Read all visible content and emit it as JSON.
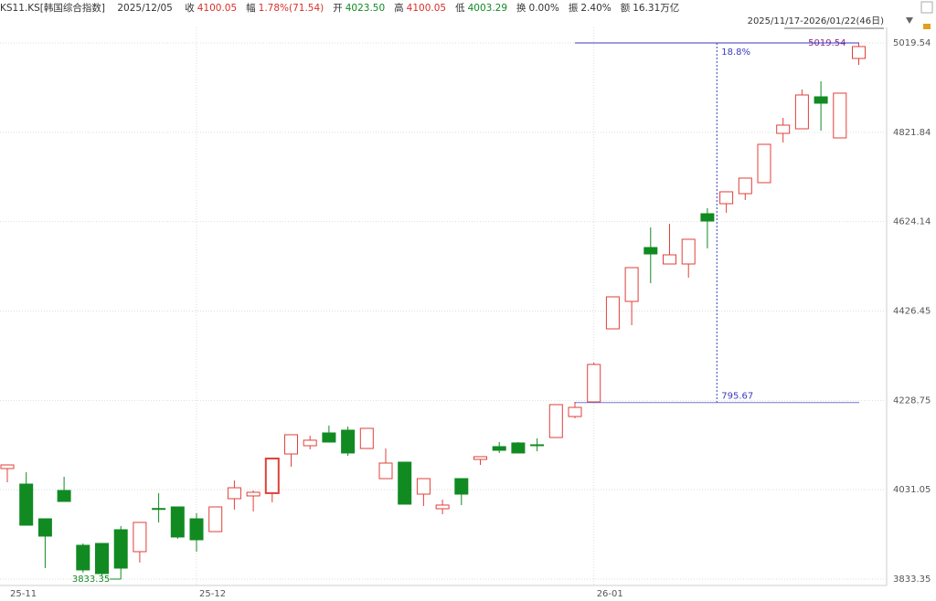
{
  "header": {
    "symbol": "KS11.KS[韩国综合指数]",
    "date": "2025/12/05",
    "fields": [
      {
        "label": "收",
        "value": "4100.05",
        "color": "#d8302a"
      },
      {
        "label": "幅",
        "value": "1.78%(71.54)",
        "color": "#d8302a"
      },
      {
        "label": "开",
        "value": "4023.50",
        "color": "#118a22"
      },
      {
        "label": "高",
        "value": "4100.05",
        "color": "#d8302a"
      },
      {
        "label": "低",
        "value": "4003.29",
        "color": "#118a22"
      },
      {
        "label": "换",
        "value": "0.00%",
        "color": "#333333"
      },
      {
        "label": "振",
        "value": "2.40%",
        "color": "#333333"
      },
      {
        "label": "额",
        "value": "16.31万亿",
        "color": "#333333"
      }
    ],
    "range": "2025/11/17-2026/01/22(46日)"
  },
  "chart_data": {
    "type": "candlestick",
    "categories": [
      "25-11",
      null,
      null,
      null,
      null,
      null,
      null,
      null,
      null,
      null,
      "25-12",
      null,
      null,
      null,
      null,
      null,
      null,
      null,
      null,
      null,
      null,
      null,
      null,
      null,
      null,
      null,
      null,
      null,
      null,
      null,
      null,
      "26-01",
      null,
      null,
      null,
      null,
      null,
      null,
      null,
      null,
      null,
      null,
      null,
      null,
      null,
      null
    ],
    "open": [
      4077.9,
      4043.5,
      3966.7,
      4029.4,
      3908.1,
      3912.2,
      3942.5,
      3894.0,
      3989.5,
      3993.0,
      3966.7,
      3938.4,
      4011.2,
      4017.3,
      4023.5,
      4110.2,
      4128.4,
      4156.7,
      4162.8,
      4122.3,
      4055.6,
      4092.0,
      4021.3,
      3989.0,
      4055.6,
      4098.1,
      4126.4,
      4134.5,
      4130.5,
      4146.6,
      4193.0,
      4225.4,
      4387.0,
      4447.7,
      4566.9,
      4530.5,
      4530.5,
      4641.7,
      4663.9,
      4686.1,
      4710.4,
      4819.5,
      4829.6,
      4900.3,
      4809.4,
      4985.2
    ],
    "high": [
      4085.9,
      4069.8,
      3966.7,
      4059.7,
      3912.2,
      3912.2,
      3950.6,
      3958.7,
      4023.3,
      3993.0,
      3979.0,
      3993.0,
      4051.6,
      4029.4,
      4100.05,
      4152.7,
      4150.6,
      4172.9,
      4170.8,
      4166.8,
      4122.3,
      4092.0,
      4055.6,
      4009.2,
      4055.6,
      4104.2,
      4136.5,
      4136.5,
      4144.6,
      4219.3,
      4225.4,
      4312.3,
      4457.8,
      4522.4,
      4611.4,
      4619.4,
      4585.1,
      4653.8,
      4690.2,
      4720.5,
      4795.2,
      4853.8,
      4916.5,
      4934.7,
      4908.4,
      5019.54
    ],
    "low": [
      4047.6,
      3952.6,
      3857.6,
      4005.1,
      3847.5,
      3841.4,
      3833.35,
      3869.8,
      3958.7,
      3922.3,
      3894.0,
      3938.4,
      3987.0,
      3982.9,
      4003.29,
      4081.9,
      4120.3,
      4136.5,
      4106.1,
      4122.3,
      4055.6,
      3999.1,
      3995.0,
      3976.8,
      3997.1,
      4085.9,
      4112.3,
      4112.3,
      4116.3,
      4146.6,
      4189.0,
      4225.4,
      4387.0,
      4395.1,
      4488.1,
      4530.5,
      4500.2,
      4564.9,
      4643.7,
      4672.0,
      4710.4,
      4799.3,
      4829.6,
      4825.5,
      4809.4,
      4971.0
    ],
    "close": [
      4085.9,
      3952.6,
      3928.4,
      4005.1,
      3853.6,
      3845.5,
      3857.6,
      3958.7,
      3988.5,
      3926.4,
      3920.3,
      3993.0,
      4035.4,
      4025.4,
      4100.05,
      4152.7,
      4140.6,
      4136.5,
      4112.3,
      4166.8,
      4090.0,
      3999.1,
      4055.6,
      3997.1,
      4021.3,
      4104.2,
      4118.3,
      4112.3,
      4130.0,
      4219.3,
      4213.2,
      4308.2,
      4457.8,
      4522.4,
      4552.7,
      4550.7,
      4585.1,
      4625.5,
      4690.2,
      4720.5,
      4795.2,
      4837.7,
      4904.4,
      4886.2,
      4908.4,
      5011.5
    ],
    "up_color": "#e0403a",
    "down_color": "#118a22",
    "ylim": [
      3819.2,
      5053.89
    ],
    "yticks": [
      5019.54,
      4821.84,
      4624.14,
      4426.45,
      4228.75,
      4031.05,
      3833.35
    ],
    "grid": true,
    "max_label": 5019.54,
    "min_label": 3833.35,
    "measure": {
      "from": 4223.87,
      "to": 5019.54,
      "change": 795.67,
      "percent": {
        "value": 18.8,
        "label": "18.8%"
      },
      "color": "#3a3ac0"
    }
  }
}
